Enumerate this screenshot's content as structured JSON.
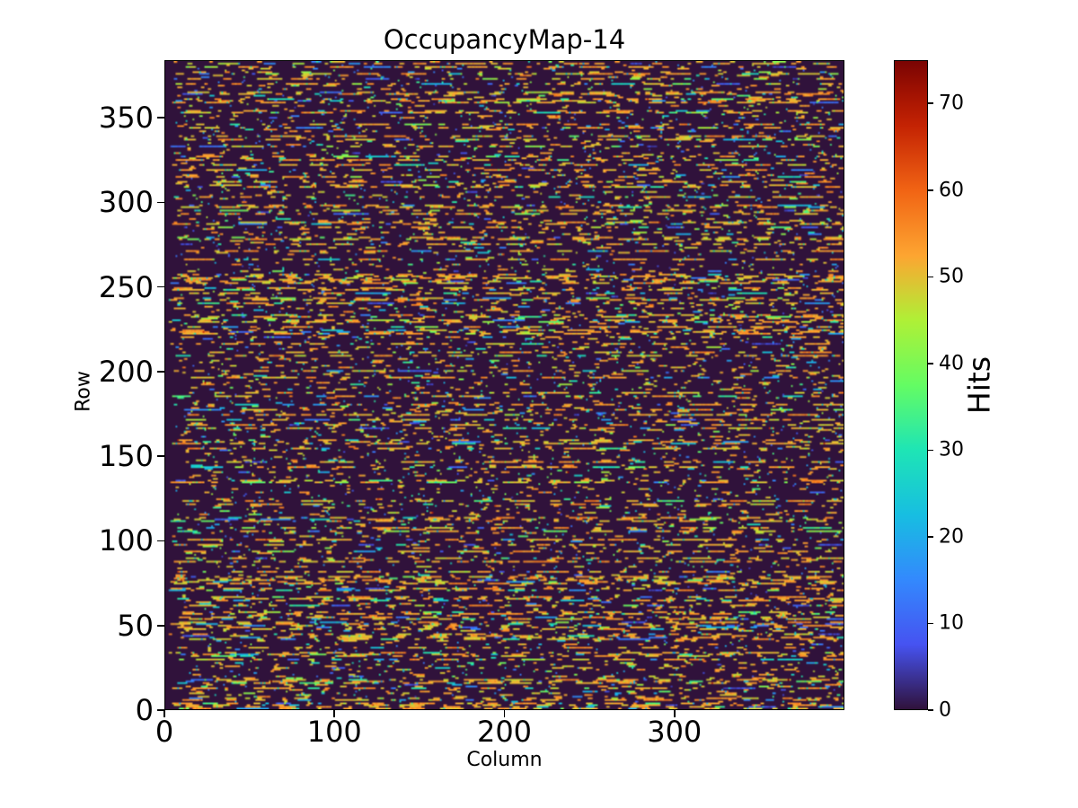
{
  "chart_data": {
    "type": "heatmap",
    "title": "OccupancyMap-14",
    "xlabel": "Column",
    "ylabel": "Row",
    "colorbar_label": "Hits",
    "n_cols": 400,
    "n_rows": 384,
    "xlim": [
      0,
      400
    ],
    "ylim": [
      0,
      384
    ],
    "vmin": 0,
    "vmax": 75,
    "x_ticks": [
      0,
      100,
      200,
      300
    ],
    "y_ticks": [
      0,
      50,
      100,
      150,
      200,
      250,
      300,
      350
    ],
    "colorbar_ticks": [
      0,
      10,
      20,
      30,
      40,
      50,
      60,
      70
    ],
    "colormap": "turbo",
    "colormap_stops": [
      [
        0.0,
        "#30123b"
      ],
      [
        0.1,
        "#4653f1"
      ],
      [
        0.2,
        "#3389fd"
      ],
      [
        0.3,
        "#17bee1"
      ],
      [
        0.4,
        "#1ee5b5"
      ],
      [
        0.5,
        "#64fc63"
      ],
      [
        0.6,
        "#aff036"
      ],
      [
        0.7,
        "#fda531"
      ],
      [
        0.8,
        "#f16414"
      ],
      [
        0.9,
        "#c42303"
      ],
      [
        0.95,
        "#a21202"
      ],
      [
        1.0,
        "#7a0403"
      ]
    ],
    "background_value": 0,
    "grid": false,
    "legend": false,
    "pattern": {
      "seed": 14,
      "row_mode_probs": {
        "active": 0.36,
        "sparse": 0.36,
        "quiet": 0.28
      },
      "streak_value_range": [
        48,
        56
      ],
      "mid_value_range": [
        18,
        46
      ],
      "low_value_range": [
        6,
        18
      ],
      "rare_high_range": [
        58,
        75
      ],
      "rare_high_prob": 0.004,
      "description": "Random occupancy map: horizontal orange streaks (~50 hits, 2-25 columns long) on a near-zero dark-purple background, with scattered blue/cyan/green pixels (5-45 hits) and rare red pixels up to 75 hits."
    }
  }
}
